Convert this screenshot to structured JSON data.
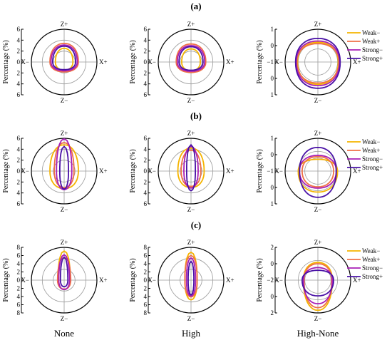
{
  "figure": {
    "rows": [
      {
        "label": "(a)"
      },
      {
        "label": "(b)"
      },
      {
        "label": "(c)"
      }
    ],
    "columns": [
      "None",
      "High",
      "High-None"
    ]
  },
  "axis_title": "Percentage (%)",
  "direction_labels": {
    "top": "Z+",
    "bottom": "Z−",
    "left": "X−",
    "right": "X+"
  },
  "legend": [
    {
      "name": "Weak−",
      "color": "#f5b400"
    },
    {
      "name": "Weak+",
      "color": "#ef7048"
    },
    {
      "name": "Strong−",
      "color": "#a81fb5"
    },
    {
      "name": "Strong+",
      "color": "#4a12a6"
    }
  ],
  "chart_data": [
    {
      "type": "line",
      "subtype": "polar",
      "row": "(a)",
      "column": "None",
      "rmax": 6,
      "ticks": [
        "6",
        "4",
        "2",
        "0",
        "2",
        "4",
        "6"
      ],
      "series": [
        {
          "name": "Weak−",
          "x_plus": 1.6,
          "z_plus": 2.5,
          "x_minus": 1.6,
          "z_minus": 1.5
        },
        {
          "name": "Weak+",
          "x_plus": 2.6,
          "z_plus": 3.4,
          "x_minus": 2.6,
          "z_minus": 1.8
        },
        {
          "name": "Strong−",
          "x_plus": 2.4,
          "z_plus": 3.1,
          "x_minus": 2.4,
          "z_minus": 1.6
        },
        {
          "name": "Strong+",
          "x_plus": 2.1,
          "z_plus": 2.9,
          "x_minus": 2.1,
          "z_minus": 1.4
        }
      ]
    },
    {
      "type": "line",
      "subtype": "polar",
      "row": "(a)",
      "column": "High",
      "rmax": 6,
      "ticks": [
        "6",
        "4",
        "2",
        "0",
        "2",
        "4",
        "6"
      ],
      "series": [
        {
          "name": "Weak−",
          "x_plus": 1.7,
          "z_plus": 2.4,
          "x_minus": 1.7,
          "z_minus": 1.6
        },
        {
          "name": "Weak+",
          "x_plus": 2.7,
          "z_plus": 3.3,
          "x_minus": 2.7,
          "z_minus": 1.9
        },
        {
          "name": "Strong−",
          "x_plus": 2.5,
          "z_plus": 3.0,
          "x_minus": 2.5,
          "z_minus": 1.7
        },
        {
          "name": "Strong+",
          "x_plus": 2.2,
          "z_plus": 2.8,
          "x_minus": 2.2,
          "z_minus": 1.5
        }
      ]
    },
    {
      "type": "line",
      "subtype": "polar",
      "row": "(a)",
      "column": "High-None",
      "rmin": -1.5,
      "rmax": 1,
      "ticks": [
        "1",
        "0",
        "−1",
        "0",
        "1"
      ],
      "series": [
        {
          "name": "Weak−",
          "x_plus": 0.05,
          "z_plus": 0.0,
          "x_minus": 0.05,
          "z_minus": 0.2
        },
        {
          "name": "Weak+",
          "x_plus": 0.1,
          "z_plus": -0.1,
          "x_minus": 0.1,
          "z_minus": 0.1
        },
        {
          "name": "Strong−",
          "x_plus": 0.15,
          "z_plus": 0.1,
          "x_minus": 0.15,
          "z_minus": 0.3
        },
        {
          "name": "Strong+",
          "x_plus": 0.2,
          "z_plus": 0.3,
          "x_minus": 0.2,
          "z_minus": 0.5
        }
      ]
    },
    {
      "type": "line",
      "subtype": "polar",
      "row": "(b)",
      "column": "None",
      "rmax": 6,
      "ticks": [
        "6",
        "4",
        "2",
        "0",
        "2",
        "4",
        "6"
      ],
      "series": [
        {
          "name": "Weak−",
          "x_plus": 2.6,
          "z_plus": 4.8,
          "x_minus": 2.6,
          "z_minus": 3.2
        },
        {
          "name": "Weak+",
          "x_plus": 1.8,
          "z_plus": 5.2,
          "x_minus": 1.8,
          "z_minus": 3.0
        },
        {
          "name": "Strong−",
          "x_plus": 1.4,
          "z_plus": 5.9,
          "x_minus": 1.4,
          "z_minus": 3.4
        },
        {
          "name": "Strong+",
          "x_plus": 0.8,
          "z_plus": 4.5,
          "x_minus": 0.8,
          "z_minus": 3.3
        }
      ]
    },
    {
      "type": "line",
      "subtype": "polar",
      "row": "(b)",
      "column": "High",
      "rmax": 6,
      "ticks": [
        "6",
        "4",
        "2",
        "0",
        "2",
        "4",
        "6"
      ],
      "series": [
        {
          "name": "Weak−",
          "x_plus": 2.4,
          "z_plus": 4.2,
          "x_minus": 2.4,
          "z_minus": 3.0
        },
        {
          "name": "Weak+",
          "x_plus": 1.8,
          "z_plus": 3.8,
          "x_minus": 1.8,
          "z_minus": 2.8
        },
        {
          "name": "Strong−",
          "x_plus": 1.3,
          "z_plus": 4.5,
          "x_minus": 1.3,
          "z_minus": 3.1
        },
        {
          "name": "Strong+",
          "x_plus": 0.8,
          "z_plus": 4.8,
          "x_minus": 0.8,
          "z_minus": 3.6
        }
      ]
    },
    {
      "type": "line",
      "subtype": "polar",
      "row": "(b)",
      "column": "High-None",
      "rmin": -1.5,
      "rmax": 1,
      "ticks": [
        "1",
        "0",
        "−1",
        "0",
        "1"
      ],
      "series": [
        {
          "name": "Weak−",
          "x_plus": 0.0,
          "z_plus": -0.6,
          "x_minus": 0.0,
          "z_minus": 0.1
        },
        {
          "name": "Weak+",
          "x_plus": -0.3,
          "z_plus": -0.4,
          "x_minus": -0.3,
          "z_minus": -0.3
        },
        {
          "name": "Strong−",
          "x_plus": -0.1,
          "z_plus": -0.3,
          "x_minus": -0.1,
          "z_minus": -0.2
        },
        {
          "name": "Strong+",
          "x_plus": -0.1,
          "z_plus": 0.3,
          "x_minus": -0.1,
          "z_minus": 0.5
        }
      ]
    },
    {
      "type": "line",
      "subtype": "polar",
      "row": "(c)",
      "column": "None",
      "rmax": 8,
      "ticks": [
        "8",
        "6",
        "4",
        "2",
        "0",
        "2",
        "4",
        "6",
        "8"
      ],
      "series": [
        {
          "name": "Weak−",
          "x_plus": 1.5,
          "z_plus": 7.1,
          "x_minus": 1.5,
          "z_minus": 2.2
        },
        {
          "name": "Weak+",
          "x_plus": 1.6,
          "z_plus": 5.5,
          "x_minus": 1.6,
          "z_minus": 2.2
        },
        {
          "name": "Strong−",
          "x_plus": 1.3,
          "z_plus": 6.2,
          "x_minus": 1.3,
          "z_minus": 2.3
        },
        {
          "name": "Strong+",
          "x_plus": 0.9,
          "z_plus": 5.6,
          "x_minus": 0.9,
          "z_minus": 1.6
        }
      ]
    },
    {
      "type": "line",
      "subtype": "polar",
      "row": "(c)",
      "column": "High",
      "rmax": 8,
      "ticks": [
        "8",
        "6",
        "4",
        "2",
        "0",
        "2",
        "4",
        "6",
        "8"
      ],
      "series": [
        {
          "name": "Weak−",
          "x_plus": 1.5,
          "z_plus": 6.8,
          "x_minus": 1.5,
          "z_minus": 4.8
        },
        {
          "name": "Weak+",
          "x_plus": 1.5,
          "z_plus": 6.0,
          "x_minus": 1.5,
          "z_minus": 4.1
        },
        {
          "name": "Strong−",
          "x_plus": 1.1,
          "z_plus": 5.4,
          "x_minus": 1.1,
          "z_minus": 3.9
        },
        {
          "name": "Strong+",
          "x_plus": 0.7,
          "z_plus": 4.6,
          "x_minus": 0.7,
          "z_minus": 3.6
        }
      ]
    },
    {
      "type": "line",
      "subtype": "polar",
      "row": "(c)",
      "column": "High-None",
      "rmin": -3,
      "rmax": 2,
      "ticks": [
        "2",
        "0",
        "−2",
        "0",
        "2"
      ],
      "series": [
        {
          "name": "Weak−",
          "x_plus": -0.8,
          "z_plus": -0.3,
          "x_minus": -0.8,
          "z_minus": 1.6
        },
        {
          "name": "Weak+",
          "x_plus": -0.9,
          "z_plus": -0.5,
          "x_minus": -0.9,
          "z_minus": 1.2
        },
        {
          "name": "Strong−",
          "x_plus": -0.8,
          "z_plus": -1.1,
          "x_minus": -0.8,
          "z_minus": 0.6
        },
        {
          "name": "Strong+",
          "x_plus": -0.6,
          "z_plus": -1.5,
          "x_minus": -0.6,
          "z_minus": -0.6
        }
      ]
    }
  ]
}
